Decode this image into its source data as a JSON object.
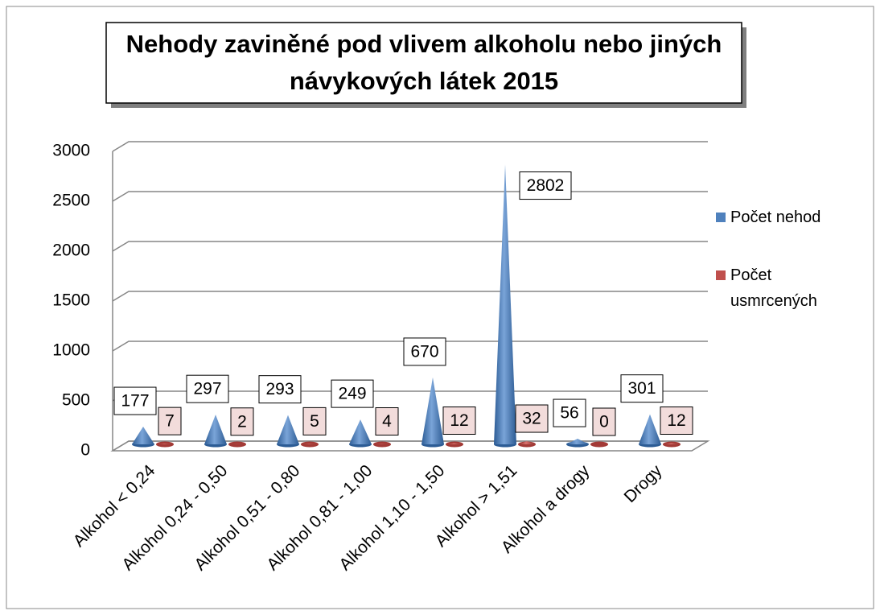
{
  "chart_data": {
    "type": "cone3d",
    "title": "Nehody zaviněné pod vlivem alkoholu nebo jiných návykových látek 2015",
    "categories": [
      "Alkohol < 0,24",
      "Alkohol 0,24 - 0,50",
      "Alkohol 0,51 - 0,80",
      "Alkohol 0,81 - 1,00",
      "Alkohol 1,10 - 1,50",
      "Alkohol  > 1,51",
      "Alkohol a drogy",
      "Drogy"
    ],
    "series": [
      {
        "name": "Počet nehod",
        "color": "#4f81bd",
        "values": [
          177,
          297,
          293,
          249,
          670,
          2802,
          56,
          301
        ]
      },
      {
        "name": "Počet usmrcených",
        "color": "#c0504d",
        "values": [
          7,
          2,
          5,
          4,
          12,
          32,
          0,
          12
        ]
      }
    ],
    "ylim": [
      0,
      3000
    ],
    "yticks": [
      0,
      500,
      1000,
      1500,
      2000,
      2500,
      3000
    ],
    "grid": true,
    "legend": "right"
  }
}
